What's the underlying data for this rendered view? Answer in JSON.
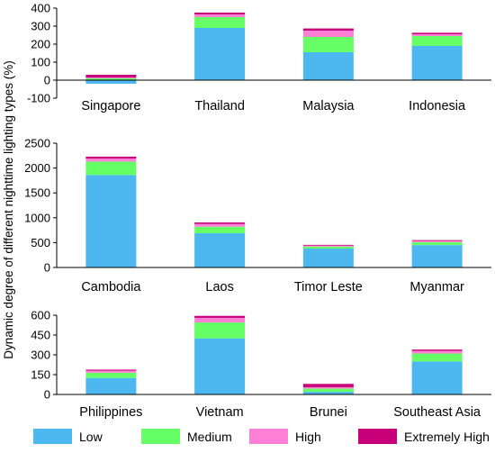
{
  "colors": {
    "low": "#4db8f0",
    "medium": "#66ff66",
    "high": "#ff80d5",
    "extremely_high": "#c7007a",
    "axis": "#000000"
  },
  "ylabel": "Dynamic degree of different nighttime lighting types (%)",
  "legend": [
    "Low",
    "Medium",
    "High",
    "Extremely High"
  ],
  "chart_data": [
    {
      "type": "bar",
      "stacked": true,
      "categories": [
        "Singapore",
        "Thailand",
        "Malaysia",
        "Indonesia"
      ],
      "series": [
        {
          "name": "Low",
          "values": [
            -20,
            290,
            155,
            190
          ]
        },
        {
          "name": "Medium",
          "values": [
            10,
            60,
            85,
            55
          ]
        },
        {
          "name": "High",
          "values": [
            5,
            15,
            35,
            10
          ]
        },
        {
          "name": "Extremely High",
          "values": [
            15,
            10,
            12,
            8
          ]
        }
      ],
      "yticks": [
        -100,
        0,
        100,
        200,
        300,
        400
      ],
      "ylim": [
        -100,
        400
      ],
      "legend_position": "bottom"
    },
    {
      "type": "bar",
      "stacked": true,
      "categories": [
        "Cambodia",
        "Laos",
        "Timor Leste",
        "Myanmar"
      ],
      "series": [
        {
          "name": "Low",
          "values": [
            1860,
            690,
            380,
            450
          ]
        },
        {
          "name": "Medium",
          "values": [
            270,
            130,
            40,
            60
          ]
        },
        {
          "name": "High",
          "values": [
            60,
            55,
            20,
            25
          ]
        },
        {
          "name": "Extremely High",
          "values": [
            40,
            30,
            15,
            15
          ]
        }
      ],
      "yticks": [
        0,
        500,
        1000,
        1500,
        2000,
        2500
      ],
      "ylim": [
        0,
        2500
      ],
      "legend_position": "bottom"
    },
    {
      "type": "bar",
      "stacked": true,
      "categories": [
        "Philippines",
        "Vietnam",
        "Brunei",
        "Southeast Asia"
      ],
      "series": [
        {
          "name": "Low",
          "values": [
            125,
            425,
            20,
            250
          ]
        },
        {
          "name": "Medium",
          "values": [
            40,
            120,
            25,
            60
          ]
        },
        {
          "name": "High",
          "values": [
            15,
            35,
            10,
            20
          ]
        },
        {
          "name": "Extremely High",
          "values": [
            8,
            15,
            25,
            10
          ]
        }
      ],
      "yticks": [
        0,
        150,
        300,
        450,
        600
      ],
      "ylim": [
        0,
        600
      ],
      "legend_position": "bottom"
    }
  ]
}
